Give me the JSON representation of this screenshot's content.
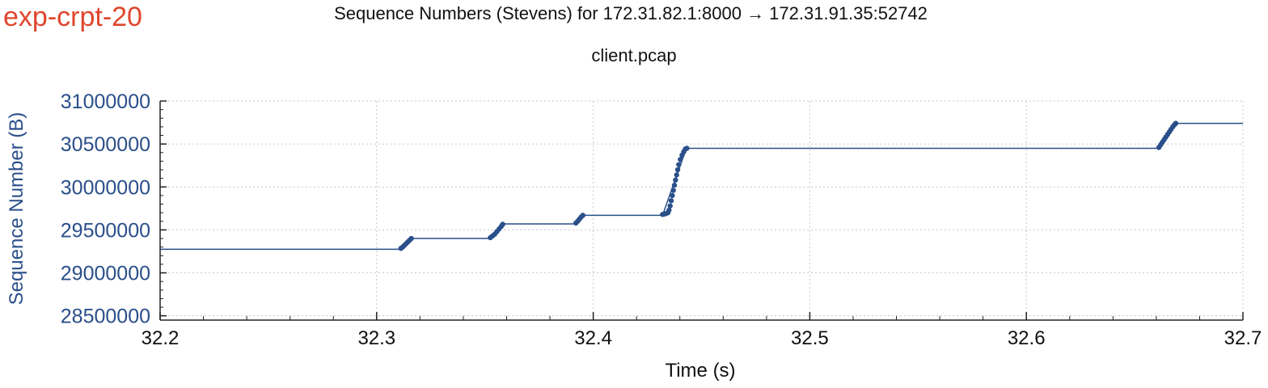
{
  "page": {
    "tag": "exp-crpt-20",
    "title": "Sequence Numbers (Stevens) for 172.31.82.1:8000 → 172.31.91.35:52742",
    "subtitle": "client.pcap"
  },
  "colors": {
    "tag": "#e0462e",
    "series": "#2a4f8a",
    "axis_label": "#2a4f8a",
    "grid": "#c8c8c8"
  },
  "chart_data": {
    "type": "line",
    "xlabel": "Time (s)",
    "ylabel": "Sequence Number (B)",
    "xlim": [
      32.2,
      32.7
    ],
    "ylim": [
      28450000,
      31000000
    ],
    "xticks": [
      32.2,
      32.3,
      32.4,
      32.5,
      32.6,
      32.7
    ],
    "xtick_labels": [
      "32.2",
      "32.3",
      "32.4",
      "32.5",
      "32.6",
      "32.7"
    ],
    "yticks": [
      28500000,
      29000000,
      29500000,
      30000000,
      30500000,
      31000000
    ],
    "ytick_labels": [
      "28500000",
      "29000000",
      "29500000",
      "30000000",
      "30500000",
      "31000000"
    ],
    "grid": true,
    "series": [
      {
        "line": [
          [
            32.2,
            29275000
          ],
          [
            32.311,
            29275000
          ],
          [
            32.316,
            29400000
          ],
          [
            32.352,
            29400000
          ],
          [
            32.358,
            29570000
          ],
          [
            32.392,
            29570000
          ],
          [
            32.395,
            29670000
          ],
          [
            32.432,
            29670000
          ],
          [
            32.443,
            30450000
          ],
          [
            32.661,
            30450000
          ],
          [
            32.669,
            30740000
          ],
          [
            32.7,
            30740000
          ]
        ],
        "points": [
          [
            32.3112,
            29285000
          ],
          [
            32.312,
            29300000
          ],
          [
            32.3128,
            29320000
          ],
          [
            32.3136,
            29340000
          ],
          [
            32.3144,
            29360000
          ],
          [
            32.3152,
            29380000
          ],
          [
            32.316,
            29400000
          ],
          [
            32.3525,
            29410000
          ],
          [
            32.3535,
            29430000
          ],
          [
            32.3545,
            29450000
          ],
          [
            32.3555,
            29480000
          ],
          [
            32.3565,
            29510000
          ],
          [
            32.3575,
            29540000
          ],
          [
            32.3582,
            29565000
          ],
          [
            32.392,
            29580000
          ],
          [
            32.3928,
            29600000
          ],
          [
            32.3936,
            29625000
          ],
          [
            32.3944,
            29650000
          ],
          [
            32.3952,
            29670000
          ],
          [
            32.432,
            29680000
          ],
          [
            32.4328,
            29685000
          ],
          [
            32.4336,
            29690000
          ],
          [
            32.4345,
            29700000
          ],
          [
            32.435,
            29730000
          ],
          [
            32.4355,
            29780000
          ],
          [
            32.436,
            29840000
          ],
          [
            32.4365,
            29900000
          ],
          [
            32.437,
            29960000
          ],
          [
            32.4375,
            30020000
          ],
          [
            32.438,
            30080000
          ],
          [
            32.4385,
            30140000
          ],
          [
            32.439,
            30200000
          ],
          [
            32.4395,
            30260000
          ],
          [
            32.4402,
            30320000
          ],
          [
            32.441,
            30370000
          ],
          [
            32.4418,
            30410000
          ],
          [
            32.4425,
            30440000
          ],
          [
            32.4432,
            30450000
          ],
          [
            32.6612,
            30460000
          ],
          [
            32.662,
            30490000
          ],
          [
            32.6628,
            30520000
          ],
          [
            32.6636,
            30550000
          ],
          [
            32.6644,
            30580000
          ],
          [
            32.6652,
            30610000
          ],
          [
            32.666,
            30640000
          ],
          [
            32.6668,
            30670000
          ],
          [
            32.6676,
            30700000
          ],
          [
            32.6684,
            30725000
          ],
          [
            32.669,
            30740000
          ]
        ]
      }
    ]
  }
}
